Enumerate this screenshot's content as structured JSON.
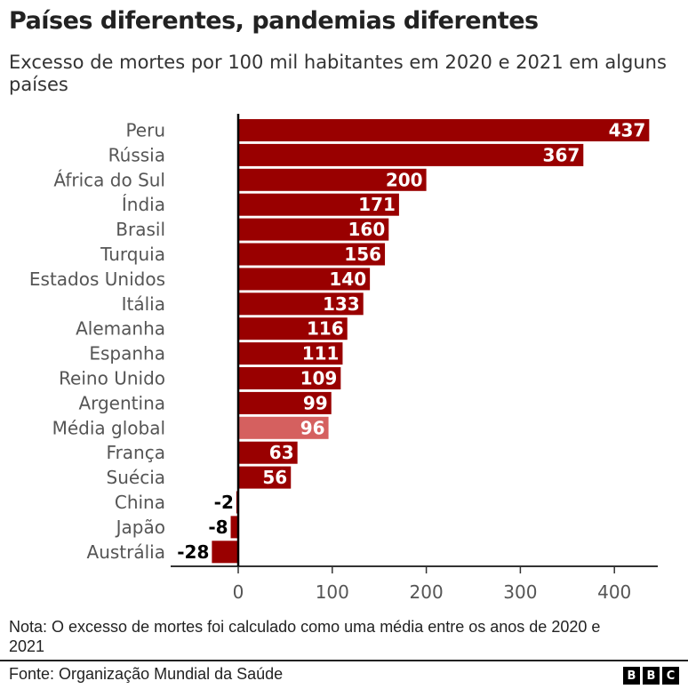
{
  "chart_data": {
    "type": "bar",
    "orientation": "horizontal",
    "title": "Países diferentes, pandemias diferentes",
    "subtitle": "Excesso de mortes por 100 mil habitantes em 2020 e 2021 em alguns países",
    "categories": [
      "Peru",
      "Rússia",
      "África do Sul",
      "Índia",
      "Brasil",
      "Turquia",
      "Estados Unidos",
      "Itália",
      "Alemanha",
      "Espanha",
      "Reino Unido",
      "Argentina",
      "Média global",
      "França",
      "Suécia",
      "China",
      "Japão",
      "Austrália"
    ],
    "values": [
      437,
      367,
      200,
      171,
      160,
      156,
      140,
      133,
      116,
      111,
      109,
      99,
      96,
      63,
      56,
      -2,
      -8,
      -28
    ],
    "highlight": "Média global",
    "xlim": [
      -30,
      450
    ],
    "xticks": [
      0,
      100,
      200,
      300,
      400
    ],
    "grid": false,
    "colors": {
      "bar": "#990000",
      "highlight": "#d5605f"
    }
  },
  "note": "Nota: O excesso de mortes foi calculado como uma média entre os anos de 2020 e 2021",
  "source": "Fonte: Organização Mundial da Saúde",
  "logo": [
    "B",
    "B",
    "C"
  ]
}
